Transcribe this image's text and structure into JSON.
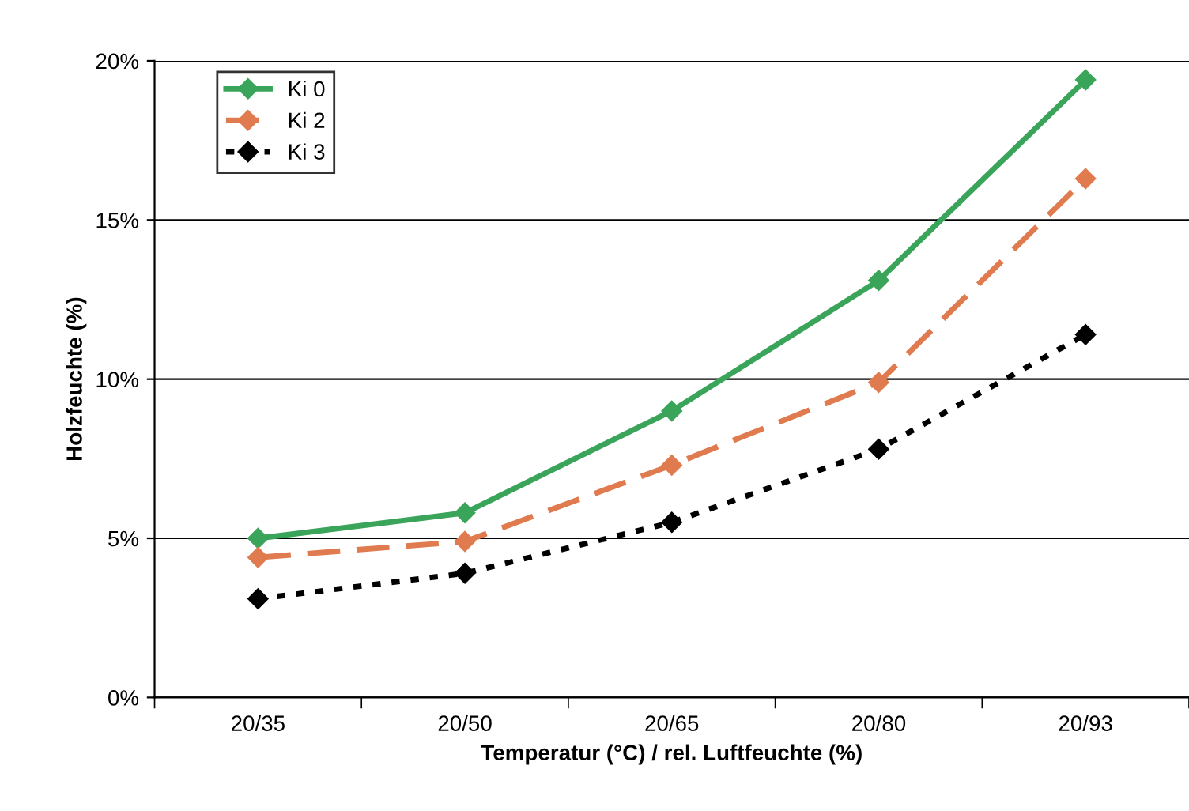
{
  "chart_data": {
    "type": "line",
    "xlabel": "Temperatur (°C) / rel. Luftfeuchte (%)",
    "ylabel": "Holzfeuchte (%)",
    "categories": [
      "20/35",
      "20/50",
      "20/65",
      "20/80",
      "20/93"
    ],
    "series": [
      {
        "name": "Ki 0",
        "color": "#3aa55a",
        "values": [
          5.0,
          5.8,
          9.0,
          13.1,
          19.4
        ],
        "line_style": "solid",
        "marker": "diamond"
      },
      {
        "name": "Ki 2",
        "color": "#e07b4f",
        "values": [
          4.4,
          4.9,
          7.3,
          9.9,
          16.3
        ],
        "line_style": "dashed",
        "marker": "diamond"
      },
      {
        "name": "Ki 3",
        "color": "#000000",
        "values": [
          3.1,
          3.9,
          5.5,
          7.8,
          11.4
        ],
        "line_style": "dotted",
        "marker": "diamond"
      }
    ],
    "ylim": [
      0,
      20
    ],
    "yticks": [
      {
        "value": 0,
        "label": "0%"
      },
      {
        "value": 5,
        "label": "5%"
      },
      {
        "value": 10,
        "label": "10%"
      },
      {
        "value": 15,
        "label": "15%"
      },
      {
        "value": 20,
        "label": "20%"
      }
    ],
    "grid": "y",
    "legend": "top left"
  }
}
